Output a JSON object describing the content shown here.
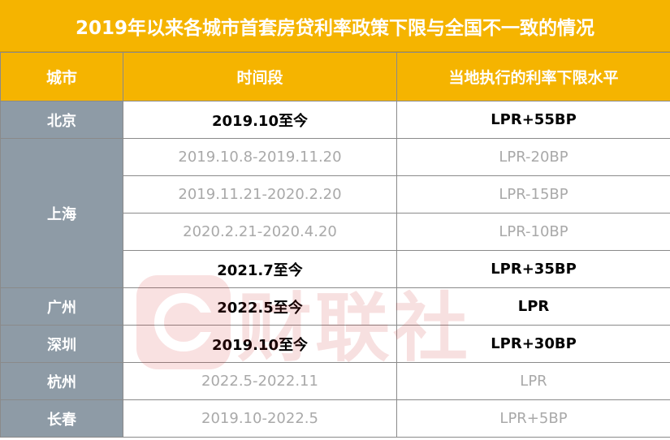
{
  "title": "2019年以来各城市首套房贷利率政策下限与全国不一致的情况",
  "headers": {
    "city": "城市",
    "period": "时间段",
    "rate": "当地执行的利率下限水平"
  },
  "rows": [
    {
      "city": "北京",
      "period": "2019.10至今",
      "rate": "LPR+55BP",
      "style": "bold"
    },
    {
      "city": "上海",
      "period": "2019.10.8-2019.11.20",
      "rate": "LPR-20BP",
      "style": "gray"
    },
    {
      "city": "",
      "period": "2019.11.21-2020.2.20",
      "rate": "LPR-15BP",
      "style": "gray"
    },
    {
      "city": "",
      "period": "2020.2.21-2020.4.20",
      "rate": "LPR-10BP",
      "style": "gray"
    },
    {
      "city": "",
      "period": "2021.7至今",
      "rate": "LPR+35BP",
      "style": "bold"
    },
    {
      "city": "广州",
      "period": "2022.5至今",
      "rate": "LPR",
      "style": "bold"
    },
    {
      "city": "深圳",
      "period": "2019.10至今",
      "rate": "LPR+30BP",
      "style": "bold"
    },
    {
      "city": "杭州",
      "period": "2022.5-2022.11",
      "rate": "LPR",
      "style": "gray"
    },
    {
      "city": "长春",
      "period": "2019.10-2022.5",
      "rate": "LPR+5BP",
      "style": "gray"
    }
  ],
  "watermark": {
    "text": "财联社",
    "icon": "cailianshe-logo-icon"
  },
  "colors": {
    "header_bg": "#F5B400",
    "city_bg": "#8E9BA6",
    "gray_text": "#a9a9a9"
  }
}
